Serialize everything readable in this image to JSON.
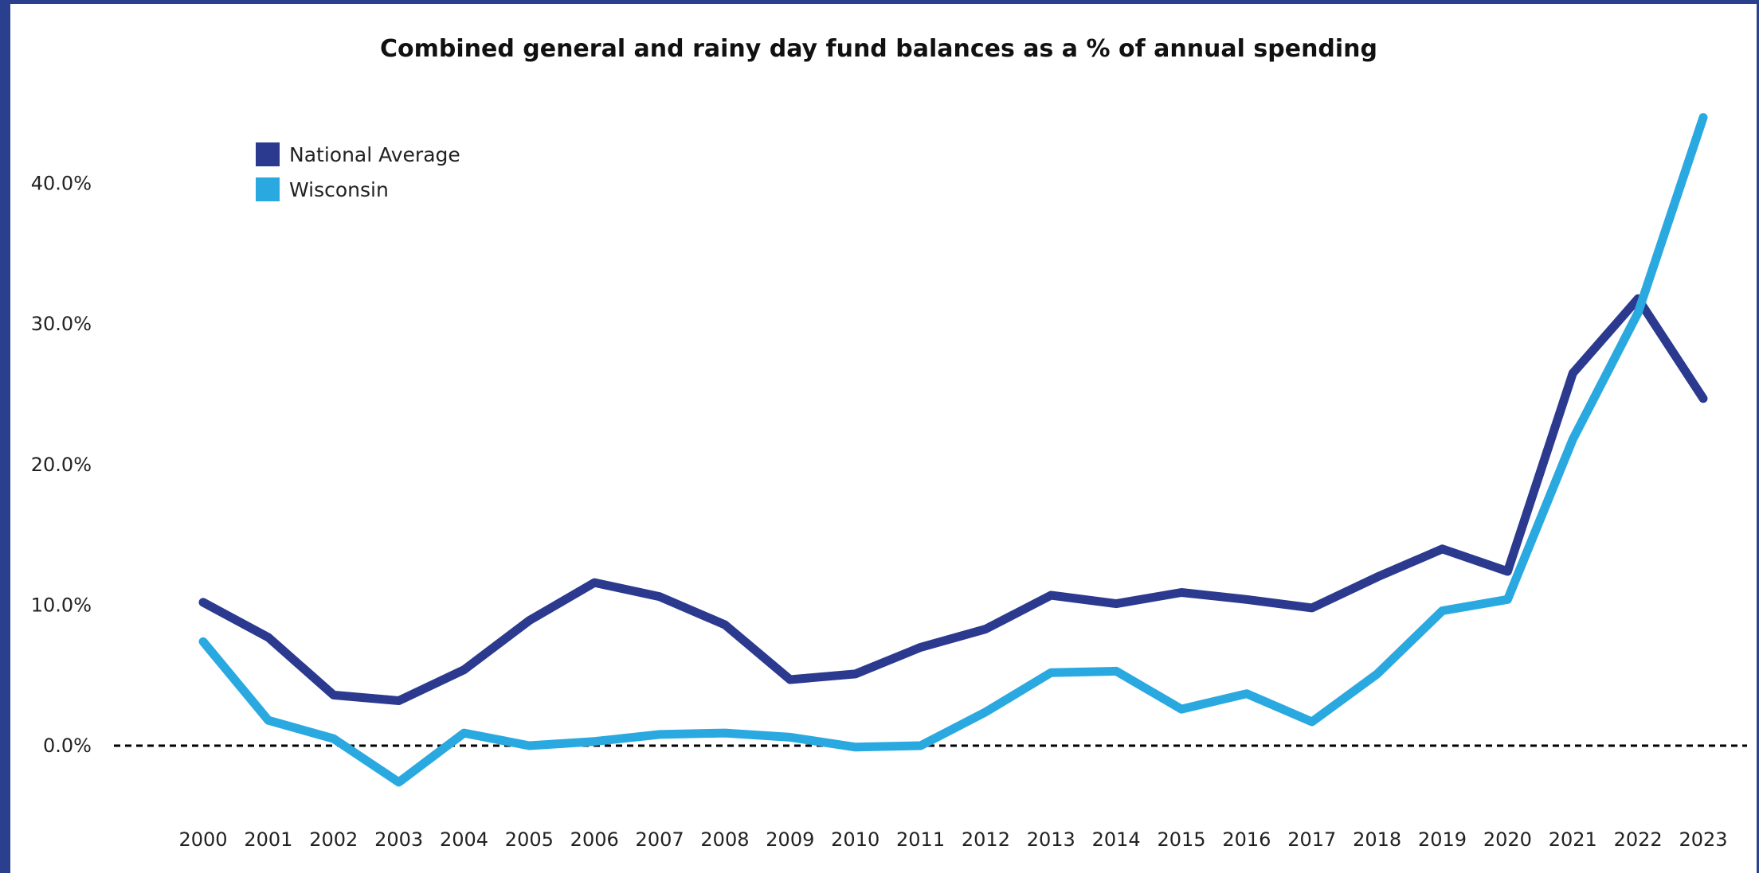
{
  "chart_data": {
    "type": "line",
    "title": "Combined general and rainy day fund balances as a % of annual spending",
    "xlabel": "",
    "ylabel": "",
    "x": [
      "2000",
      "2001",
      "2002",
      "2003",
      "2004",
      "2005",
      "2006",
      "2007",
      "2008",
      "2009",
      "2010",
      "2011",
      "2012",
      "2013",
      "2014",
      "2015",
      "2016",
      "2017",
      "2018",
      "2019",
      "2020",
      "2021",
      "2022",
      "2023"
    ],
    "y_ticks": [
      "0.0%",
      "10.0%",
      "20.0%",
      "30.0%",
      "40.0%"
    ],
    "ylim": [
      -5,
      45
    ],
    "grid": false,
    "zero_reference_line": "dashed",
    "legend_placement": "top-left",
    "series": [
      {
        "name": "National Average",
        "color": "#2b3a8f",
        "values": [
          10.2,
          7.7,
          3.6,
          3.2,
          5.4,
          8.9,
          11.6,
          10.6,
          8.6,
          4.7,
          5.1,
          7.0,
          8.3,
          10.7,
          10.1,
          10.9,
          10.4,
          9.8,
          12.0,
          14.0,
          12.4,
          26.5,
          31.8,
          24.7
        ]
      },
      {
        "name": "Wisconsin",
        "color": "#2aa9e0",
        "values": [
          7.4,
          1.8,
          0.5,
          -2.6,
          0.9,
          0.0,
          0.3,
          0.8,
          0.9,
          0.6,
          -0.1,
          0.0,
          2.4,
          5.2,
          5.3,
          2.6,
          3.7,
          1.7,
          5.1,
          9.6,
          10.4,
          21.8,
          30.8,
          44.7
        ]
      }
    ]
  }
}
